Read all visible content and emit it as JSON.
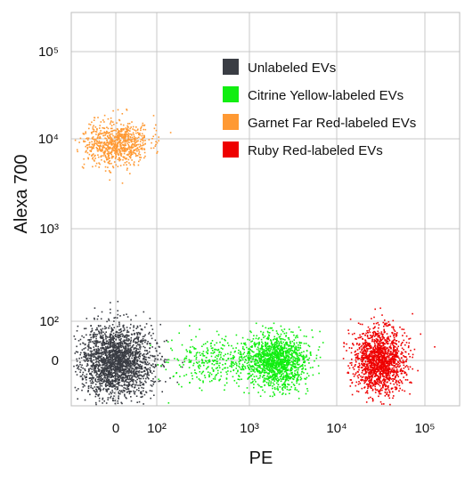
{
  "chart_data": {
    "type": "scatter",
    "title": "",
    "xlabel": "PE",
    "ylabel": "Alexa 700",
    "x_scale": "biexponential",
    "y_scale": "biexponential",
    "xlim": [
      -60,
      200000
    ],
    "ylim": [
      -60,
      200000
    ],
    "grid": true,
    "legend_position": "top-right",
    "x_ticks": [
      {
        "value": 0,
        "label": "0"
      },
      {
        "value": 100,
        "label": "10²"
      },
      {
        "value": 1000,
        "label": "10³"
      },
      {
        "value": 10000,
        "label": "10⁴"
      },
      {
        "value": 100000,
        "label": "10⁵"
      }
    ],
    "y_ticks": [
      {
        "value": 0,
        "label": "0"
      },
      {
        "value": 100,
        "label": "10²"
      },
      {
        "value": 1000,
        "label": "10³"
      },
      {
        "value": 10000,
        "label": "10⁴"
      },
      {
        "value": 100000,
        "label": "10⁵"
      }
    ],
    "series": [
      {
        "name": "Unlabeled EVs",
        "color": "#3a3d44",
        "clusters": [
          {
            "x_center": 0,
            "x_spread": 45,
            "y_center": 0,
            "y_spread": 45,
            "count": 2200
          }
        ]
      },
      {
        "name": "Citrine Yellow-labeled EVs",
        "color": "#11ee11",
        "clusters": [
          {
            "x_center": 2000,
            "x_spread": 1000,
            "y_center": 0,
            "y_spread": 35,
            "count": 1400
          },
          {
            "x_center": 400,
            "x_spread": 300,
            "y_center": 0,
            "y_spread": 30,
            "count": 320
          }
        ]
      },
      {
        "name": "Garnet Far Red-labeled EVs",
        "color": "#ff9933",
        "clusters": [
          {
            "x_center": 0,
            "x_spread": 40,
            "y_center": 9000,
            "y_spread": 3000,
            "count": 800
          }
        ]
      },
      {
        "name": "Ruby Red-labeled EVs",
        "color": "#ee0000",
        "clusters": [
          {
            "x_center": 30000,
            "x_spread": 12000,
            "y_center": 0,
            "y_spread": 40,
            "count": 1500
          }
        ]
      }
    ]
  }
}
